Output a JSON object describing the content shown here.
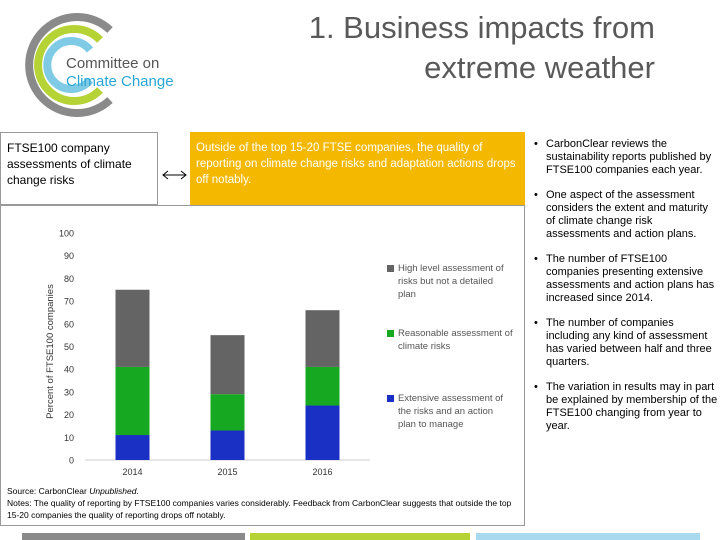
{
  "logo": {
    "line1": "Committee on",
    "line2": "Climate Change"
  },
  "title": {
    "line1": "1. Business impacts from",
    "line2": "extreme weather"
  },
  "left_box": "FTSE100 company assessments of climate change risks",
  "highlight": "Outside of the top 15-20 FTSE companies, the quality of reporting on climate change risks and adaptation actions drops off notably.",
  "bullets": [
    "CarbonClear reviews the sustainability reports published by FTSE100 companies each year.",
    "One aspect of the assessment considers the extent and maturity of climate change risk assessments and action plans.",
    "The number of FTSE100 companies presenting extensive assessments and action plans has increased since 2014.",
    "The number of companies including any kind of assessment has varied between half and three quarters.",
    "The variation in results may in part be explained by membership of the FTSE100 changing from year to year."
  ],
  "source": {
    "label": "Source: CarbonClear",
    "emphasis": "Unpublished.",
    "notes": "Notes: The quality of reporting by FTSE100 companies varies considerably. Feedback from CarbonClear suggests that outside the top 15-20 companies the quality of reporting drops off notably."
  },
  "chart_data": {
    "type": "bar",
    "stacked": true,
    "y_label": "Percent of FTSE100 companies",
    "categories": [
      "2014",
      "2015",
      "2016"
    ],
    "series": [
      {
        "name": "Extensive assessment of the risks and an action plan to manage",
        "color": "#1a2fc4",
        "values": [
          11,
          13,
          24
        ]
      },
      {
        "name": "Reasonable assessment of climate risks",
        "color": "#16a820",
        "values": [
          30,
          16,
          17
        ]
      },
      {
        "name": "High level assessment of risks but not a detailed plan",
        "color": "#646464",
        "values": [
          34,
          26,
          25
        ]
      }
    ],
    "ylim": [
      0,
      100
    ],
    "yticks": [
      0,
      10,
      20,
      30,
      40,
      50,
      60,
      70,
      80,
      90,
      100
    ],
    "grid": false,
    "legend": "right"
  }
}
